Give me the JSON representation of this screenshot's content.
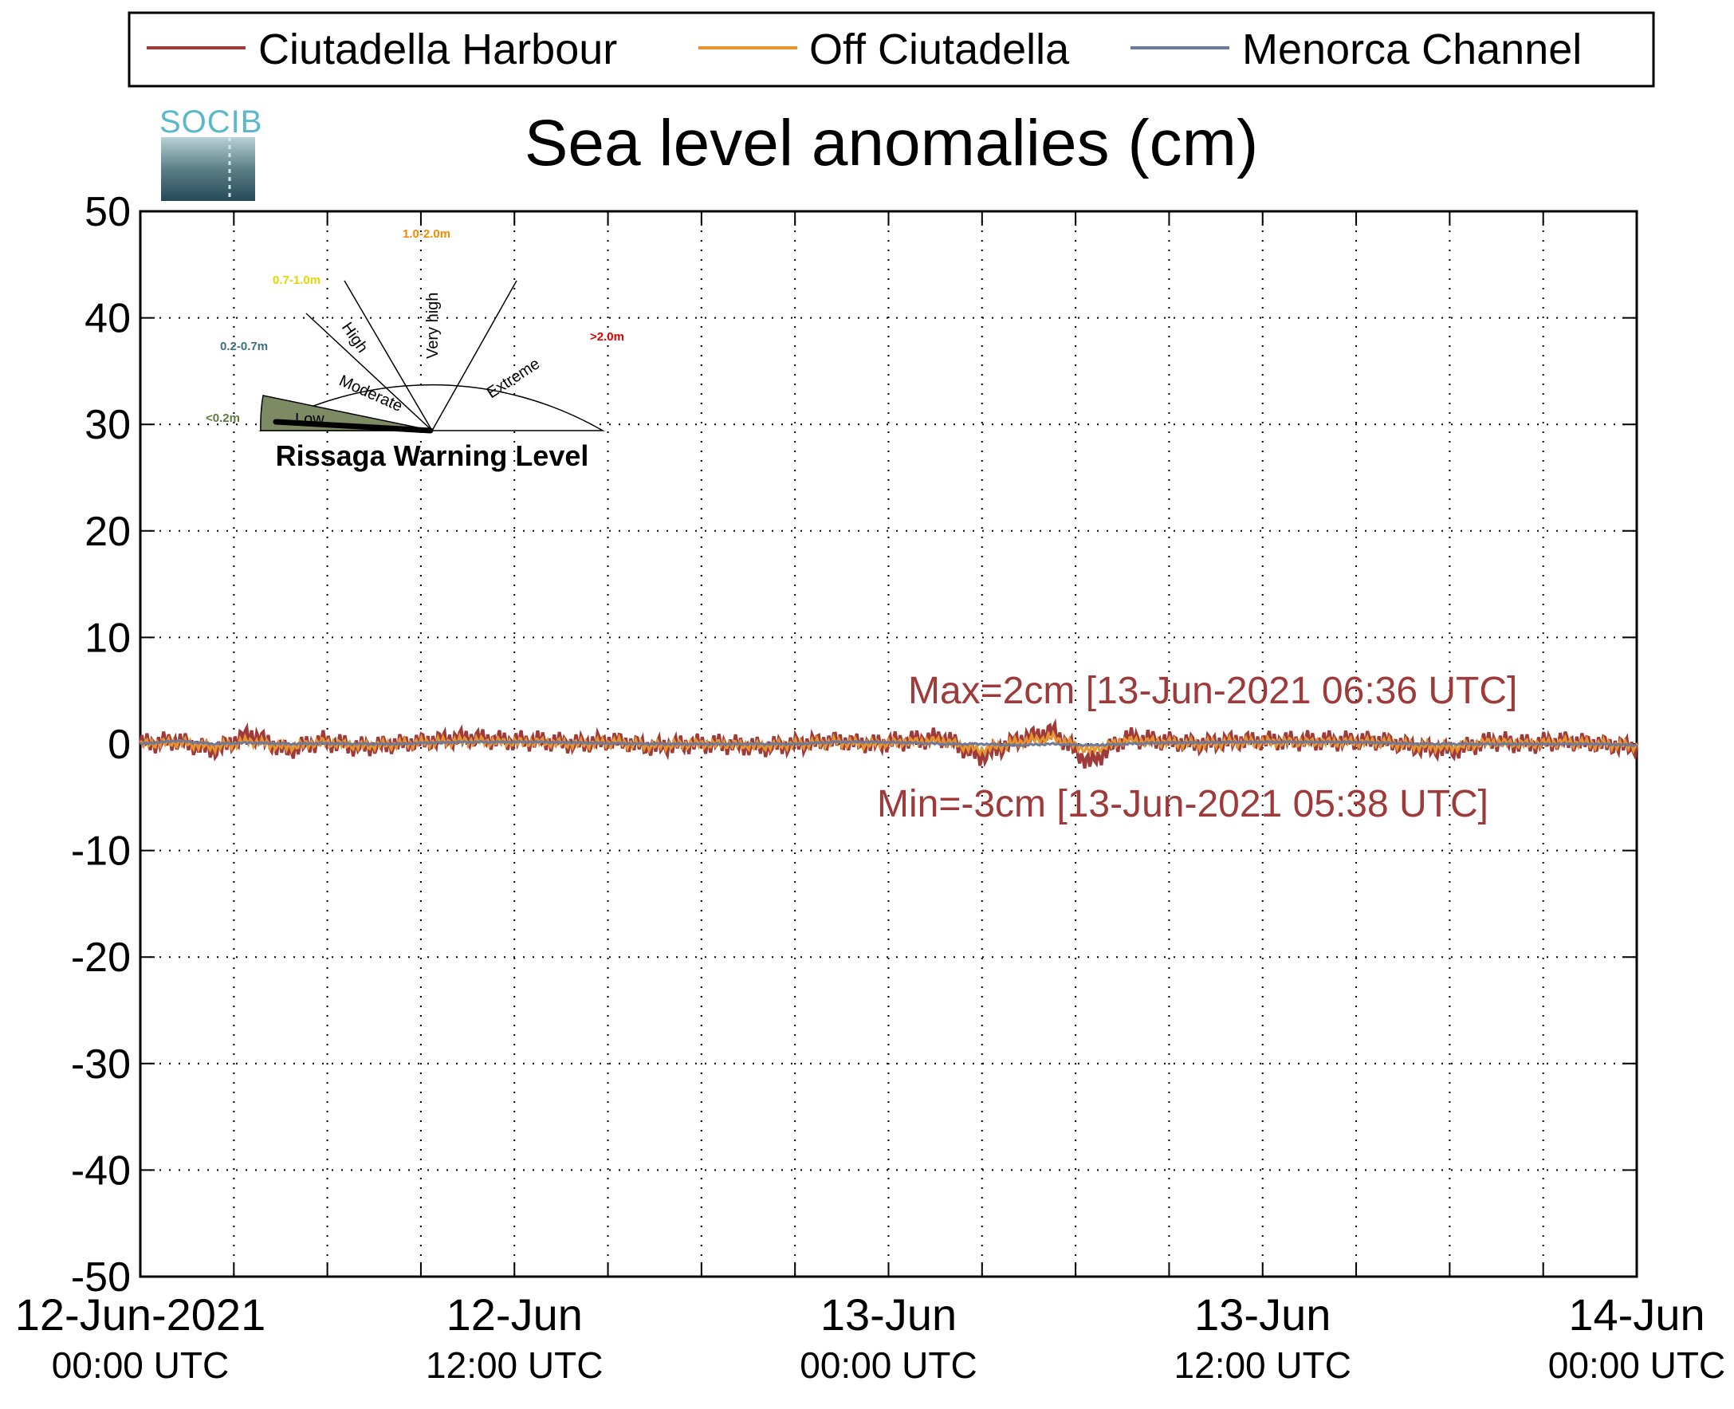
{
  "chart_data": {
    "type": "line",
    "title": "Sea level anomalies (cm)",
    "ylim": [
      -50,
      50
    ],
    "yticks": [
      -50,
      -40,
      -30,
      -20,
      -10,
      0,
      10,
      20,
      30,
      40,
      50
    ],
    "x_range": [
      "2021-06-12 00:00",
      "2021-06-14 00:00"
    ],
    "xticks": [
      {
        "line1": "12-Jun-2021",
        "line2": "00:00 UTC"
      },
      {
        "line1": "12-Jun",
        "line2": "12:00 UTC"
      },
      {
        "line1": "13-Jun",
        "line2": "00:00 UTC"
      },
      {
        "line1": "13-Jun",
        "line2": "12:00 UTC"
      },
      {
        "line1": "14-Jun",
        "line2": "00:00 UTC"
      }
    ],
    "grid": true,
    "legend_position": "top",
    "series": [
      {
        "name": "Ciutadella Harbour",
        "color": "#9e3a3a",
        "amplitude": 1.0,
        "values": [
          0,
          0.5,
          -1,
          1.5,
          -1,
          0.5,
          -0.5,
          0,
          0.5,
          1,
          0.5,
          0.5,
          0,
          0.5,
          -0.5,
          0,
          0,
          -0.5,
          0,
          0.5,
          0,
          0.5,
          1,
          -2,
          0.5,
          2,
          -3,
          1,
          0.5,
          0,
          0.5,
          0.5,
          0.5,
          0.5,
          0.5,
          -0.5,
          -1,
          0.5,
          0,
          0.5,
          0,
          -0.5
        ]
      },
      {
        "name": "Off Ciutadella",
        "color": "#e8952f",
        "amplitude": 0.5,
        "values": [
          0,
          0.3,
          -0.5,
          0.5,
          -0.5,
          0.3,
          -0.3,
          0,
          0.3,
          0.5,
          0.3,
          0.3,
          0,
          0.3,
          -0.3,
          0,
          0,
          -0.3,
          0,
          0.3,
          0,
          0.3,
          0.5,
          -1,
          0.3,
          1,
          -1,
          0.5,
          0.3,
          0,
          0.3,
          0.3,
          0.3,
          0.3,
          0.3,
          -0.3,
          -0.5,
          0.3,
          0,
          0.3,
          0,
          -0.3
        ]
      },
      {
        "name": "Menorca Channel",
        "color": "#6e7a9a",
        "amplitude": 0.1,
        "values": [
          0,
          0.5,
          0,
          0.2,
          0,
          0.1,
          0,
          0,
          0.2,
          0.3,
          0.3,
          0.3,
          0.2,
          0.1,
          0,
          0,
          0,
          0,
          0,
          0.3,
          0.3,
          0.2,
          0,
          0,
          -0.2,
          0,
          -0.2,
          0,
          0.2,
          0.2,
          0.3,
          0.3,
          0.3,
          0.3,
          0.2,
          0,
          0,
          0,
          0,
          0,
          0,
          -0.2
        ]
      }
    ],
    "annotations": {
      "max": "Max=2cm [13-Jun-2021 06:36 UTC]",
      "min": "Min=-3cm [13-Jun-2021 05:38 UTC]",
      "color": "#9e3a3a"
    }
  },
  "logo": {
    "text": "SOCIB"
  },
  "gauge": {
    "title": "Rissaga Warning Level",
    "level": "Low",
    "sectors": [
      {
        "name": "Low",
        "range": "<0.2m",
        "range_color": "#5d7a3e"
      },
      {
        "name": "Moderate",
        "range": "0.2-0.7m",
        "range_color": "#3f6f80"
      },
      {
        "name": "High",
        "range": "0.7-1.0m",
        "range_color": "#e8d400"
      },
      {
        "name": "Very high",
        "range": "1.0-2.0m",
        "range_color": "#f08a00"
      },
      {
        "name": "Extreme",
        "range": ">2.0m",
        "range_color": "#e00000"
      }
    ]
  }
}
